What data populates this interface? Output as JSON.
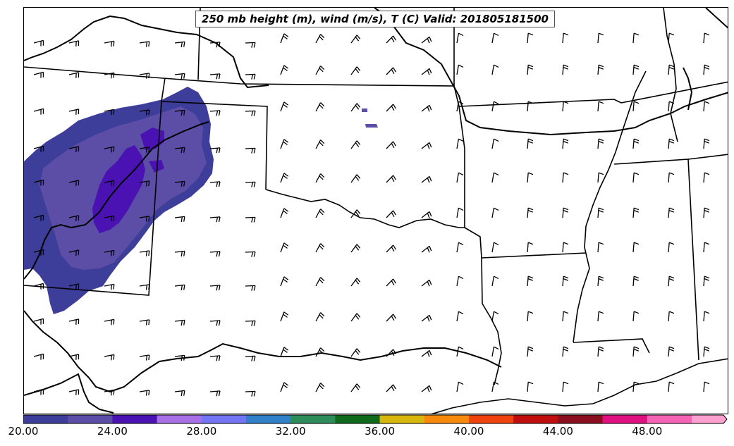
{
  "title": "250 mb height (m), wind (m/s), T (C) Valid: 201805181500",
  "colorbar": {
    "colors": [
      "#3d3d9a",
      "#5c4ea6",
      "#4a12b3",
      "#a86fe6",
      "#7375f5",
      "#2f7fc9",
      "#2e8b5a",
      "#0f6a1b",
      "#d7b70d",
      "#f78a0d",
      "#f0420d",
      "#c00e0e",
      "#8a0e1e",
      "#e01080",
      "#f563b5",
      "#fca0d0"
    ],
    "ticks": [
      "20.00",
      "24.00",
      "28.00",
      "32.00",
      "36.00",
      "40.00",
      "44.00",
      "48.00"
    ]
  }
}
